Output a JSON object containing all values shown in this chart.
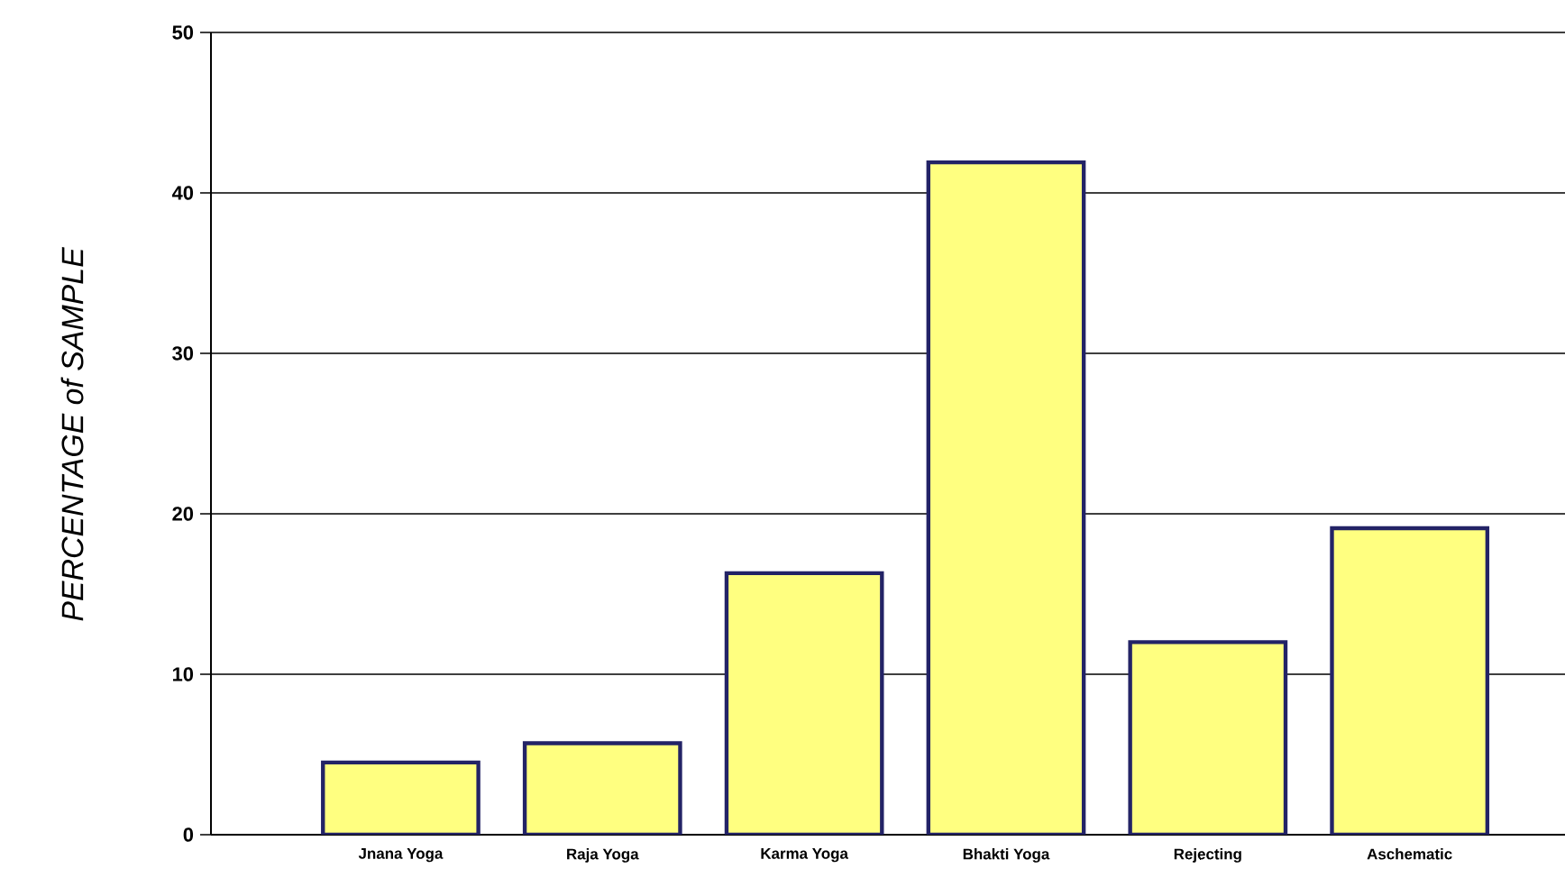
{
  "chart_data": {
    "type": "bar",
    "ylabel": "PERCENTAGE of SAMPLE",
    "categories": [
      "Jnana Yoga",
      "Raja Yoga",
      "Karma Yoga",
      "Bhakti Yoga",
      "Rejecting",
      "Aschematic"
    ],
    "values": [
      4.5,
      5.7,
      16.3,
      41.9,
      12.0,
      19.1
    ],
    "color": "#ffff80",
    "ylim": [
      0,
      50
    ],
    "yticks": [
      0,
      10,
      20,
      30,
      40,
      50
    ],
    "grid": "y"
  }
}
